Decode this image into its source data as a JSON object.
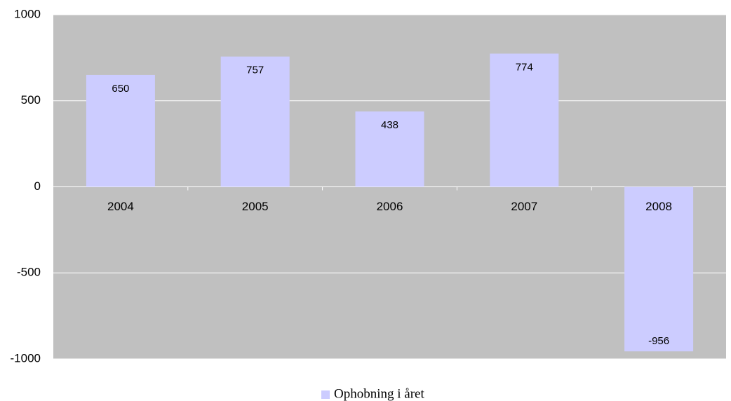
{
  "chart_data": {
    "type": "bar",
    "categories": [
      "2004",
      "2005",
      "2006",
      "2007",
      "2008"
    ],
    "series": [
      {
        "name": "Ophobning i året",
        "color": "#ccccff",
        "values": [
          650,
          757,
          438,
          774,
          -956
        ]
      }
    ],
    "ylim": [
      -1000,
      1000
    ],
    "yticks": [
      -1000,
      -500,
      0,
      500,
      1000
    ],
    "grid": true,
    "legend": "bottom"
  }
}
